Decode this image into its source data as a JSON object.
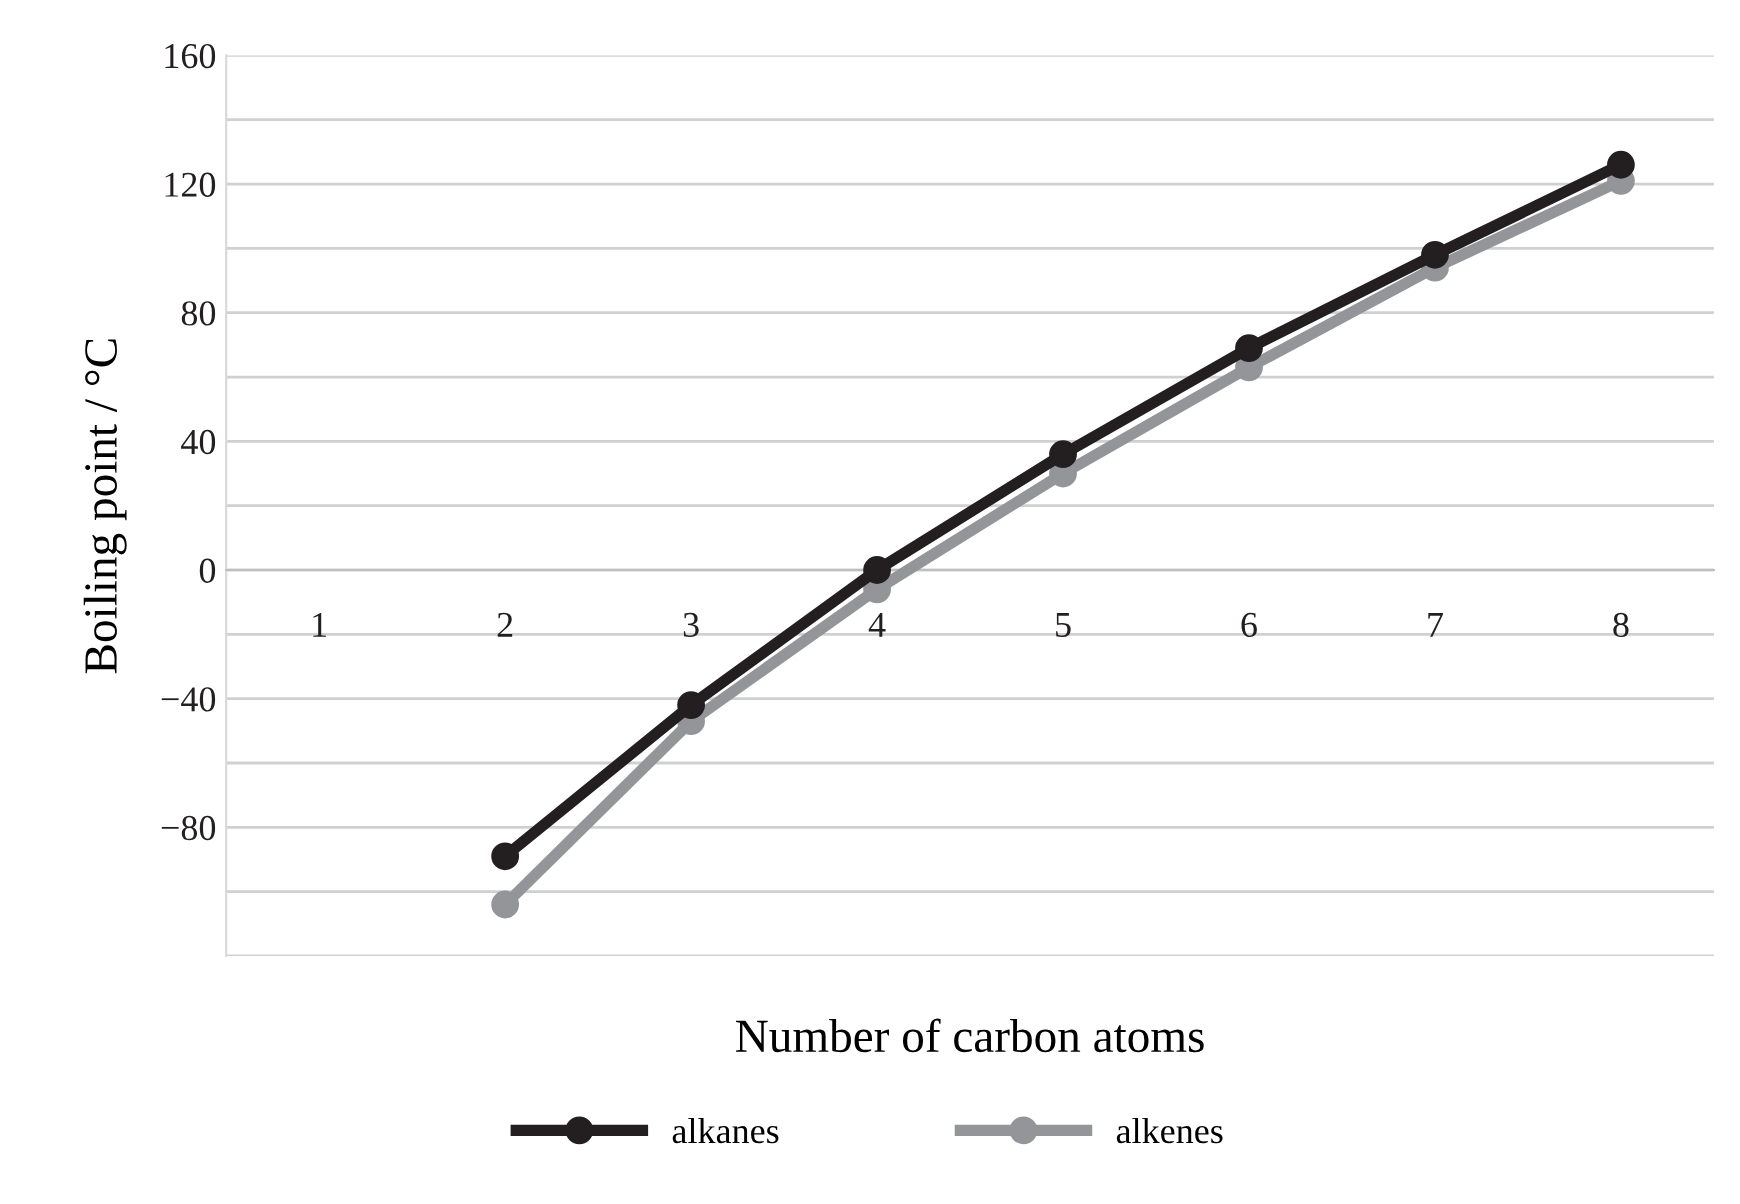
{
  "chart_data": {
    "type": "line",
    "xlabel": "Number of carbon atoms",
    "ylabel": "Boiling point / °C",
    "categories": [
      "1",
      "2",
      "3",
      "4",
      "5",
      "6",
      "7",
      "8"
    ],
    "series": [
      {
        "name": "alkanes",
        "color": "#231f20",
        "values": [
          null,
          -89,
          -42,
          0,
          36,
          69,
          98,
          126
        ]
      },
      {
        "name": "alkenes",
        "color": "#939598",
        "values": [
          null,
          -104,
          -47,
          -6,
          30,
          63,
          94,
          121
        ]
      }
    ],
    "ylim": [
      -120,
      160
    ],
    "yticks": [
      {
        "value": -120,
        "label": null
      },
      {
        "value": -100,
        "label": null
      },
      {
        "value": -80,
        "label": "−80"
      },
      {
        "value": -60,
        "label": null
      },
      {
        "value": -40,
        "label": "−40"
      },
      {
        "value": -20,
        "label": null
      },
      0,
      {
        "value": 20,
        "label": null
      },
      40,
      {
        "value": 60,
        "label": null
      },
      80,
      {
        "value": 100,
        "label": null
      },
      120,
      {
        "value": 140,
        "label": null
      },
      160
    ],
    "grid": "y",
    "legend": "bottom",
    "marker": "circle",
    "line_style": "solid"
  }
}
